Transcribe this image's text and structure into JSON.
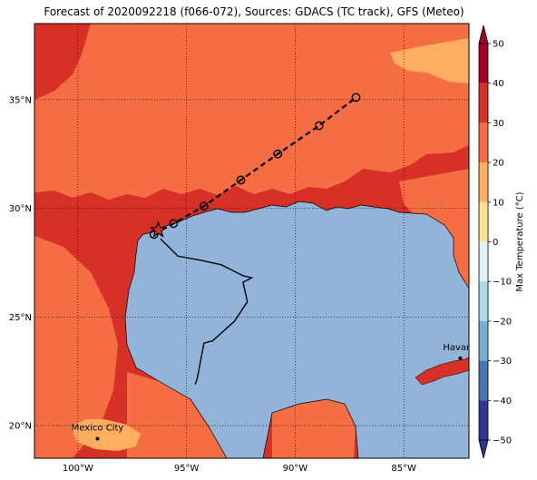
{
  "title": "Forecast of 2020092218 (f066-072), Sources: GDACS (TC track), GFS (Meteo)",
  "map": {
    "lon_range": [
      -102,
      -82
    ],
    "lat_range": [
      18.5,
      38.5
    ],
    "lon_ticks": [
      {
        "value": -100,
        "label": "100°W"
      },
      {
        "value": -95,
        "label": "95°W"
      },
      {
        "value": -90,
        "label": "90°W"
      },
      {
        "value": -85,
        "label": "85°W"
      }
    ],
    "lat_ticks": [
      {
        "value": 20,
        "label": "20°N"
      },
      {
        "value": 25,
        "label": "25°N"
      },
      {
        "value": 30,
        "label": "30°N"
      },
      {
        "value": 35,
        "label": "35°N"
      }
    ],
    "grid": "dotted",
    "colors": {
      "land_30_40": "#d73027",
      "land_20_30": "#f46d43",
      "land_10_20": "#fdae61",
      "sea": "#91b4d8"
    }
  },
  "cities": [
    {
      "name": "Mexico City",
      "lon": -99.1,
      "lat": 19.4
    },
    {
      "name": "Havana",
      "lon": -82.4,
      "lat": 23.1
    }
  ],
  "track": {
    "forecast_points": [
      {
        "lon": -96.5,
        "lat": 28.8
      },
      {
        "lon": -95.6,
        "lat": 29.3
      },
      {
        "lon": -94.2,
        "lat": 30.1
      },
      {
        "lon": -92.5,
        "lat": 31.3
      },
      {
        "lon": -90.8,
        "lat": 32.5
      },
      {
        "lon": -88.9,
        "lat": 33.8
      },
      {
        "lon": -87.2,
        "lat": 35.1
      }
    ],
    "current_position": {
      "lon": -96.3,
      "lat": 29.0
    },
    "past_track": [
      [
        -96.2,
        28.6
      ],
      [
        -95.4,
        27.8
      ],
      [
        -94.3,
        27.6
      ],
      [
        -93.4,
        27.4
      ],
      [
        -92.4,
        26.9
      ],
      [
        -92.0,
        26.8
      ],
      [
        -92.4,
        26.6
      ],
      [
        -92.2,
        25.7
      ],
      [
        -92.8,
        24.8
      ],
      [
        -93.8,
        23.9
      ],
      [
        -94.2,
        23.8
      ],
      [
        -94.5,
        22.2
      ],
      [
        -94.6,
        21.9
      ]
    ]
  },
  "colorbar": {
    "label": "Max Temperature (°C)",
    "range": [
      -50,
      50
    ],
    "ticks": [
      50,
      40,
      30,
      20,
      10,
      0,
      -10,
      -20,
      -30,
      -40,
      -50
    ],
    "colors": [
      "#313695",
      "#4575b4",
      "#74add1",
      "#abd9e9",
      "#e0f3f8",
      "#ffffbf",
      "#fee090",
      "#fdae61",
      "#f46d43",
      "#d73027",
      "#a50026"
    ]
  }
}
